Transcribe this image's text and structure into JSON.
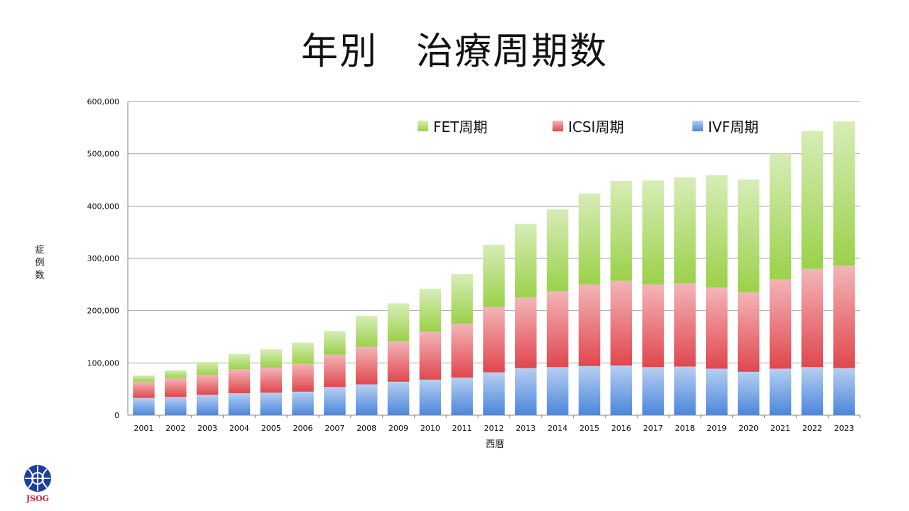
{
  "title": "年別　治療周期数",
  "colors": {
    "fet": "#9bd14a",
    "icsi": "#e0474d",
    "ivf": "#4a86dc",
    "grid": "#a6a6a6",
    "logo_blue": "#1c3f9e",
    "logo_red": "#c0262e"
  },
  "logo": {
    "text": "JSOG",
    "icon": "jsog-emblem-icon"
  },
  "chart_data": {
    "type": "bar",
    "stacked": true,
    "xlabel": "西暦",
    "ylabel": "症例数",
    "ylim": [
      0,
      600000
    ],
    "yticks": [
      "0",
      "100,000",
      "200,000",
      "300,000",
      "400,000",
      "500,000",
      "600,000"
    ],
    "ytick_values": [
      0,
      100000,
      200000,
      300000,
      400000,
      500000,
      600000
    ],
    "grid": true,
    "legend_position": "top-right",
    "categories": [
      "2001",
      "2002",
      "2003",
      "2004",
      "2005",
      "2006",
      "2007",
      "2008",
      "2009",
      "2010",
      "2011",
      "2012",
      "2013",
      "2014",
      "2015",
      "2016",
      "2017",
      "2018",
      "2019",
      "2020",
      "2021",
      "2022",
      "2023"
    ],
    "series": [
      {
        "name": "IVF周期",
        "key": "ivf",
        "values": [
          33000,
          35000,
          39000,
          42000,
          43000,
          45000,
          54000,
          59000,
          64000,
          68000,
          72000,
          82000,
          90000,
          92000,
          94000,
          95000,
          92000,
          93000,
          89000,
          83000,
          89000,
          92000,
          90000
        ]
      },
      {
        "name": "ICSI周期",
        "key": "icsi",
        "values": [
          31000,
          36000,
          38000,
          46000,
          48000,
          53000,
          62000,
          72000,
          77000,
          91000,
          103000,
          125000,
          135000,
          145000,
          156000,
          162000,
          158000,
          159000,
          155000,
          152000,
          171000,
          188000,
          196000
        ]
      },
      {
        "name": "FET周期",
        "key": "fet",
        "values": [
          12000,
          15000,
          25000,
          29000,
          35000,
          41000,
          45000,
          59000,
          73000,
          83000,
          95000,
          119000,
          141000,
          157000,
          174000,
          191000,
          199000,
          203000,
          215000,
          216000,
          240000,
          264000,
          276000
        ]
      }
    ],
    "legend": [
      {
        "name": "FET周期",
        "key": "fet"
      },
      {
        "name": "ICSI周期",
        "key": "icsi"
      },
      {
        "name": "IVF周期",
        "key": "ivf"
      }
    ]
  }
}
